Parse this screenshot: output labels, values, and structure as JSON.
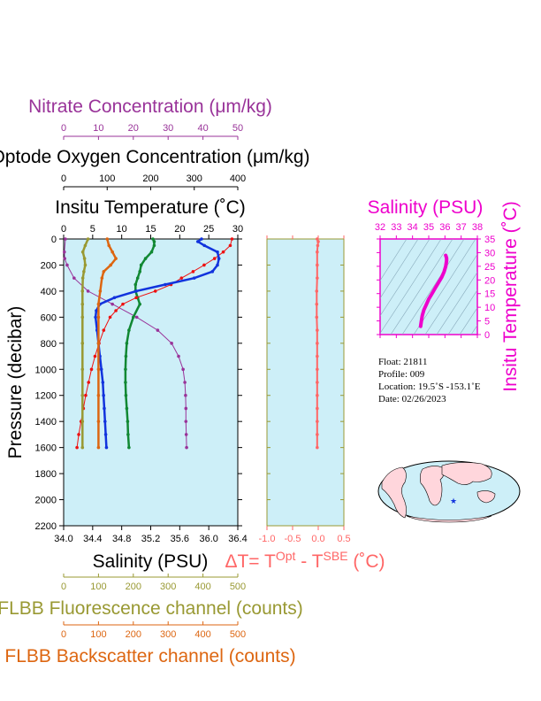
{
  "colors": {
    "nitrate": "#993399",
    "oxygen": "#118833",
    "temperature": "#ee1111",
    "salinity": "#1133dd",
    "fluorescence": "#999933",
    "backscatter": "#dd6611",
    "delta_t": "#ff6666",
    "ts_panel": "#ee00cc",
    "panel_bg": "#cdeff8",
    "black": "#000000"
  },
  "axes": {
    "nitrate": {
      "title": "Nitrate Concentration (μm/kg)",
      "ticks": [
        "0",
        "10",
        "20",
        "30",
        "40",
        "50"
      ]
    },
    "oxygen": {
      "title": "Optode Oxygen Concentration (μm/kg)",
      "ticks": [
        "0",
        "100",
        "200",
        "300",
        "400"
      ]
    },
    "temperature": {
      "title": "Insitu Temperature (˚C)",
      "ticks": [
        "0",
        "5",
        "10",
        "15",
        "20",
        "25",
        "30"
      ]
    },
    "pressure": {
      "title": "Pressure (decibar)",
      "ticks": [
        "0",
        "200",
        "400",
        "600",
        "800",
        "1000",
        "1200",
        "1400",
        "1600",
        "1800",
        "2000",
        "2200"
      ]
    },
    "salinity": {
      "title": "Salinity (PSU)",
      "ticks": [
        "34.0",
        "34.4",
        "34.8",
        "35.2",
        "35.6",
        "36.0",
        "36.4"
      ]
    },
    "delta_t": {
      "title_main": "ΔT= T",
      "sup1": "Opt",
      "title_mid": " - T",
      "sup2": "SBE",
      "title_end": " (˚C)",
      "ticks": [
        "-1.0",
        "-0.5",
        "0.0",
        "0.5"
      ]
    },
    "fluorescence": {
      "title": "FLBB Fluorescence channel (counts)",
      "ticks": [
        "0",
        "100",
        "200",
        "300",
        "400",
        "500"
      ]
    },
    "backscatter": {
      "title": "FLBB Backscatter channel (counts)",
      "ticks": [
        "0",
        "100",
        "200",
        "300",
        "400",
        "500"
      ]
    },
    "ts_salinity": {
      "title": "Salinity (PSU)",
      "ticks": [
        "32",
        "33",
        "34",
        "35",
        "36",
        "37",
        "38"
      ]
    },
    "ts_temperature": {
      "title": "Insitu Temperature (˚C)",
      "ticks": [
        "0",
        "5",
        "10",
        "15",
        "20",
        "25",
        "30",
        "35"
      ]
    }
  },
  "info": {
    "float": "Float:  21811",
    "profile": "Profile:  009",
    "location": "Location:  19.5˚S  -153.1˚E",
    "date": "Date:  02/26/2023"
  },
  "chart_data": {
    "type": "line",
    "pressure_range": [
      0,
      2200
    ],
    "series": [
      {
        "name": "Nitrate Concentration (μm/kg)",
        "axis_range": [
          0,
          50
        ],
        "p": [
          0,
          100,
          150,
          200,
          300,
          400,
          500,
          600,
          700,
          800,
          900,
          1000,
          1100,
          1200,
          1300,
          1400,
          1500,
          1600
        ],
        "values": [
          0.5,
          0.2,
          0.3,
          1,
          3,
          7,
          14,
          21,
          27,
          31,
          33,
          34.3,
          34.8,
          35,
          35.1,
          35.1,
          35.2,
          35.3
        ]
      },
      {
        "name": "Optode Oxygen Concentration (μm/kg)",
        "axis_range": [
          0,
          400
        ],
        "p": [
          0,
          20,
          50,
          100,
          150,
          200,
          250,
          300,
          350,
          400,
          450,
          500,
          600,
          700,
          800,
          900,
          1000,
          1100,
          1200,
          1300,
          1400,
          1500,
          1600
        ],
        "values": [
          205,
          208,
          208,
          202,
          188,
          178,
          175,
          170,
          165,
          165,
          170,
          175,
          160,
          150,
          145,
          143,
          142,
          142,
          143,
          145,
          147,
          148,
          150
        ]
      },
      {
        "name": "Insitu Temperature (˚C)",
        "axis_range": [
          0,
          30
        ],
        "p": [
          0,
          50,
          100,
          150,
          200,
          250,
          300,
          350,
          400,
          450,
          500,
          550,
          600,
          700,
          800,
          900,
          1000,
          1100,
          1200,
          1300,
          1400,
          1500,
          1600
        ],
        "values": [
          29,
          28.7,
          27.5,
          26,
          24.2,
          22.3,
          20.3,
          18.5,
          15.8,
          12.5,
          10.2,
          9,
          8,
          6.9,
          6.1,
          5.4,
          4.8,
          4.3,
          3.8,
          3.4,
          3.0,
          2.6,
          2.3
        ]
      },
      {
        "name": "Salinity (PSU)",
        "axis_range": [
          34.0,
          36.4
        ],
        "p": [
          0,
          20,
          50,
          100,
          150,
          200,
          250,
          300,
          350,
          400,
          450,
          500,
          550,
          600,
          700,
          800,
          900,
          1000,
          1100,
          1200,
          1300,
          1400,
          1500,
          1600
        ],
        "values": [
          35.9,
          35.85,
          35.94,
          36.12,
          36.14,
          36.12,
          36.05,
          35.8,
          35.4,
          35.0,
          34.7,
          34.5,
          34.45,
          34.44,
          34.46,
          34.48,
          34.5,
          34.52,
          34.54,
          34.55,
          34.56,
          34.57,
          34.58,
          34.59
        ]
      },
      {
        "name": "FLBB Fluorescence channel (counts)",
        "axis_range": [
          0,
          500
        ],
        "p": [
          0,
          50,
          100,
          150,
          200,
          250,
          300,
          400,
          500,
          600,
          800,
          1000,
          1200,
          1400,
          1600
        ],
        "values": [
          70,
          62,
          55,
          60,
          62,
          58,
          55,
          54,
          54,
          54,
          54,
          54,
          54,
          54,
          54
        ]
      },
      {
        "name": "FLBB Backscatter channel (counts)",
        "axis_range": [
          0,
          500
        ],
        "p": [
          0,
          50,
          100,
          150,
          200,
          250,
          300,
          400,
          500,
          600,
          800,
          1000,
          1200,
          1400,
          1600
        ],
        "values": [
          125,
          130,
          140,
          150,
          135,
          115,
          110,
          105,
          100,
          100,
          100,
          100,
          100,
          100,
          100
        ]
      },
      {
        "name": "ΔT= Tᴼᵖᵗ - Tˢᴮᴱ (˚C)",
        "axis_range": [
          -1.0,
          0.5
        ],
        "p": [
          0,
          20,
          50,
          100,
          200,
          300,
          400,
          500,
          600,
          700,
          800,
          900,
          1000,
          1100,
          1200,
          1300,
          1400,
          1500,
          1600
        ],
        "values": [
          -0.02,
          0.0,
          -0.01,
          -0.02,
          -0.02,
          -0.02,
          -0.03,
          -0.03,
          -0.03,
          -0.02,
          -0.02,
          -0.02,
          -0.02,
          -0.02,
          -0.02,
          -0.02,
          -0.02,
          -0.02,
          -0.02
        ]
      }
    ],
    "ts_diagram": {
      "x_range": [
        32,
        38
      ],
      "y_range": [
        0,
        35
      ],
      "salinity": [
        36.05,
        36.1,
        36.1,
        36.05,
        35.95,
        35.8,
        35.6,
        35.4,
        35.2,
        35.0,
        34.85,
        34.7,
        34.6,
        34.55,
        34.5
      ],
      "temperature": [
        29,
        28,
        27,
        25,
        23,
        21,
        19,
        17,
        15,
        13,
        11,
        9,
        7,
        5,
        3
      ]
    }
  }
}
